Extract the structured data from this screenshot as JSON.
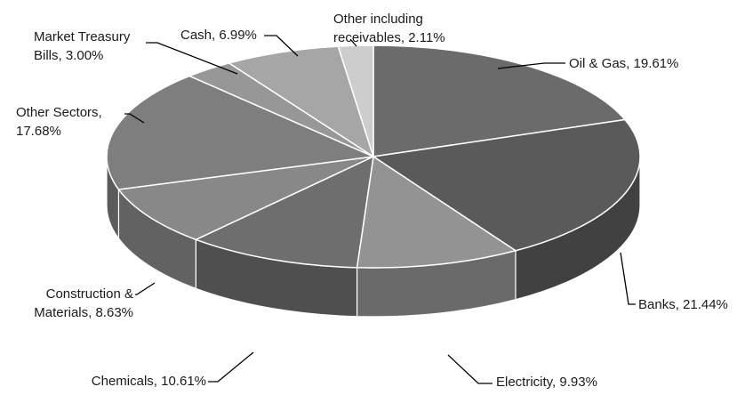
{
  "chart_data": {
    "type": "pie",
    "title": "",
    "slices": [
      {
        "label": "Oil & Gas",
        "value": 19.61,
        "text": [
          "Oil & Gas, 19.61%"
        ],
        "color": "#6b6b6b"
      },
      {
        "label": "Banks",
        "value": 21.44,
        "text": [
          "Banks, 21.44%"
        ],
        "color": "#5a5a5a"
      },
      {
        "label": "Electricity",
        "value": 9.93,
        "text": [
          "Electricity, 9.93%"
        ],
        "color": "#939393"
      },
      {
        "label": "Chemicals",
        "value": 10.61,
        "text": [
          "Chemicals, 10.61%"
        ],
        "color": "#6e6e6e"
      },
      {
        "label": "Construction & Materials",
        "value": 8.63,
        "text": [
          "Construction &",
          "Materials, 8.63%"
        ],
        "color": "#888888"
      },
      {
        "label": "Other Sectors",
        "value": 17.68,
        "text": [
          "Other Sectors,",
          "17.68%"
        ],
        "color": "#7e7e7e"
      },
      {
        "label": "Market Treasury Bills",
        "value": 3.0,
        "text": [
          "Market Treasury",
          "Bills, 3.00%"
        ],
        "color": "#979797"
      },
      {
        "label": "Cash",
        "value": 6.99,
        "text": [
          "Cash, 6.99%"
        ],
        "color": "#a6a6a6"
      },
      {
        "label": "Other including receivables",
        "value": 2.11,
        "text": [
          "Other including",
          "receivables, 2.11%"
        ],
        "color": "#cdcdcd"
      }
    ]
  }
}
